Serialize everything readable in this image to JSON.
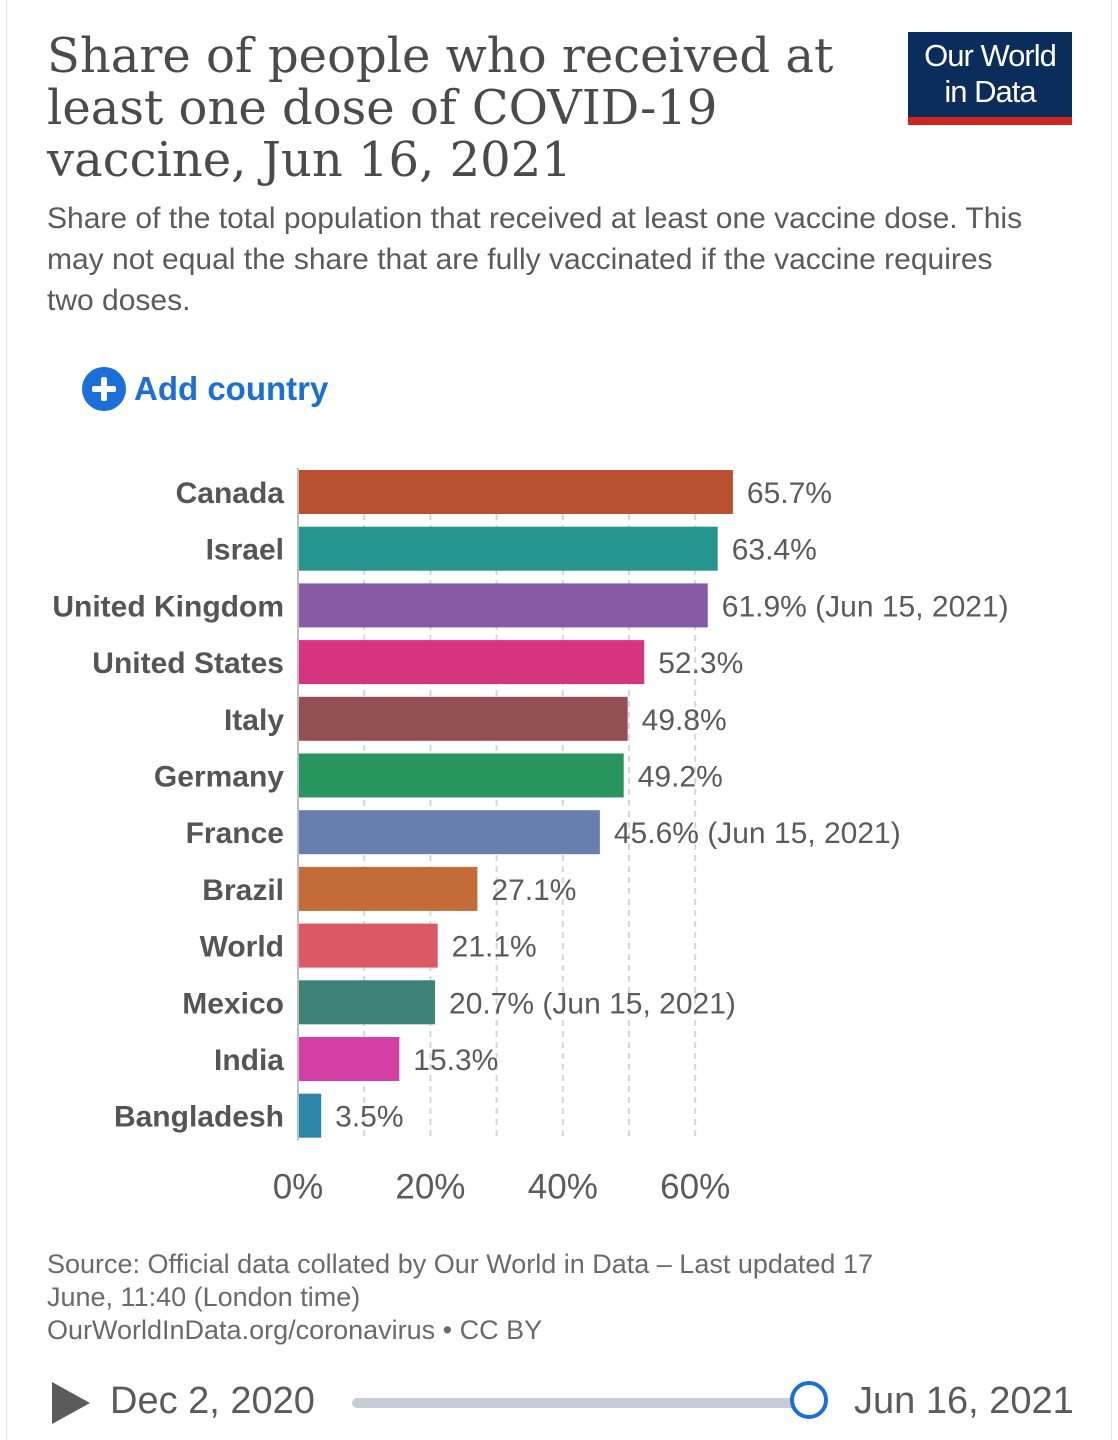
{
  "header": {
    "title": "Share of people who received at least one dose of COVID-19 vaccine, Jun 16, 2021",
    "title_lines": [
      "Share of people who received at",
      "least one dose of COVID-19",
      "vaccine, Jun 16, 2021"
    ],
    "subtitle": "Share of the total population that received at least one vaccine dose. This may not equal the share that are fully vaccinated if the vaccine requires two doses.",
    "logo_line1": "Our World",
    "logo_line2": "in Data"
  },
  "controls": {
    "add_country_label": "Add country",
    "icon": "plus-circle-icon"
  },
  "chart_data": {
    "type": "bar",
    "orientation": "horizontal",
    "title": "Share of people who received at least one dose of COVID-19 vaccine, Jun 16, 2021",
    "xlabel": "",
    "ylabel": "",
    "xlim": [
      0,
      66
    ],
    "x_ticks": [
      0,
      20,
      40,
      60
    ],
    "x_tick_labels": [
      "0%",
      "20%",
      "40%",
      "60%"
    ],
    "grid": true,
    "categories": [
      "Canada",
      "Israel",
      "United Kingdom",
      "United States",
      "Italy",
      "Germany",
      "France",
      "Brazil",
      "World",
      "Mexico",
      "India",
      "Bangladesh"
    ],
    "values": [
      65.7,
      63.4,
      61.9,
      52.3,
      49.8,
      49.2,
      45.6,
      27.1,
      21.1,
      20.7,
      15.3,
      3.5
    ],
    "value_labels": [
      "65.7%",
      "63.4%",
      "61.9% (Jun 15, 2021)",
      "52.3%",
      "49.8%",
      "49.2%",
      "45.6% (Jun 15, 2021)",
      "27.1%",
      "21.1%",
      "20.7% (Jun 15, 2021)",
      "15.3%",
      "3.5%"
    ],
    "colors": [
      "#b95130",
      "#25968d",
      "#855ba6",
      "#d73480",
      "#934f54",
      "#27955d",
      "#687eae",
      "#c46c38",
      "#dd5865",
      "#3d8178",
      "#d440a6",
      "#2b86a8"
    ]
  },
  "footer": {
    "source_line1": "Source: Official data collated by Our World in Data – Last updated 17",
    "source_line2": "June, 11:40 (London time)",
    "source_line3": "OurWorldInData.org/coronavirus • CC BY"
  },
  "timeline": {
    "start_date": "Dec 2, 2020",
    "end_date": "Jun 16, 2021",
    "play_icon": "play-icon"
  },
  "colors": {
    "logo_bg": "#0b2d5b",
    "logo_stripe": "#ce261e",
    "accent": "#1a6fd8",
    "text": "#5b5b5b"
  }
}
